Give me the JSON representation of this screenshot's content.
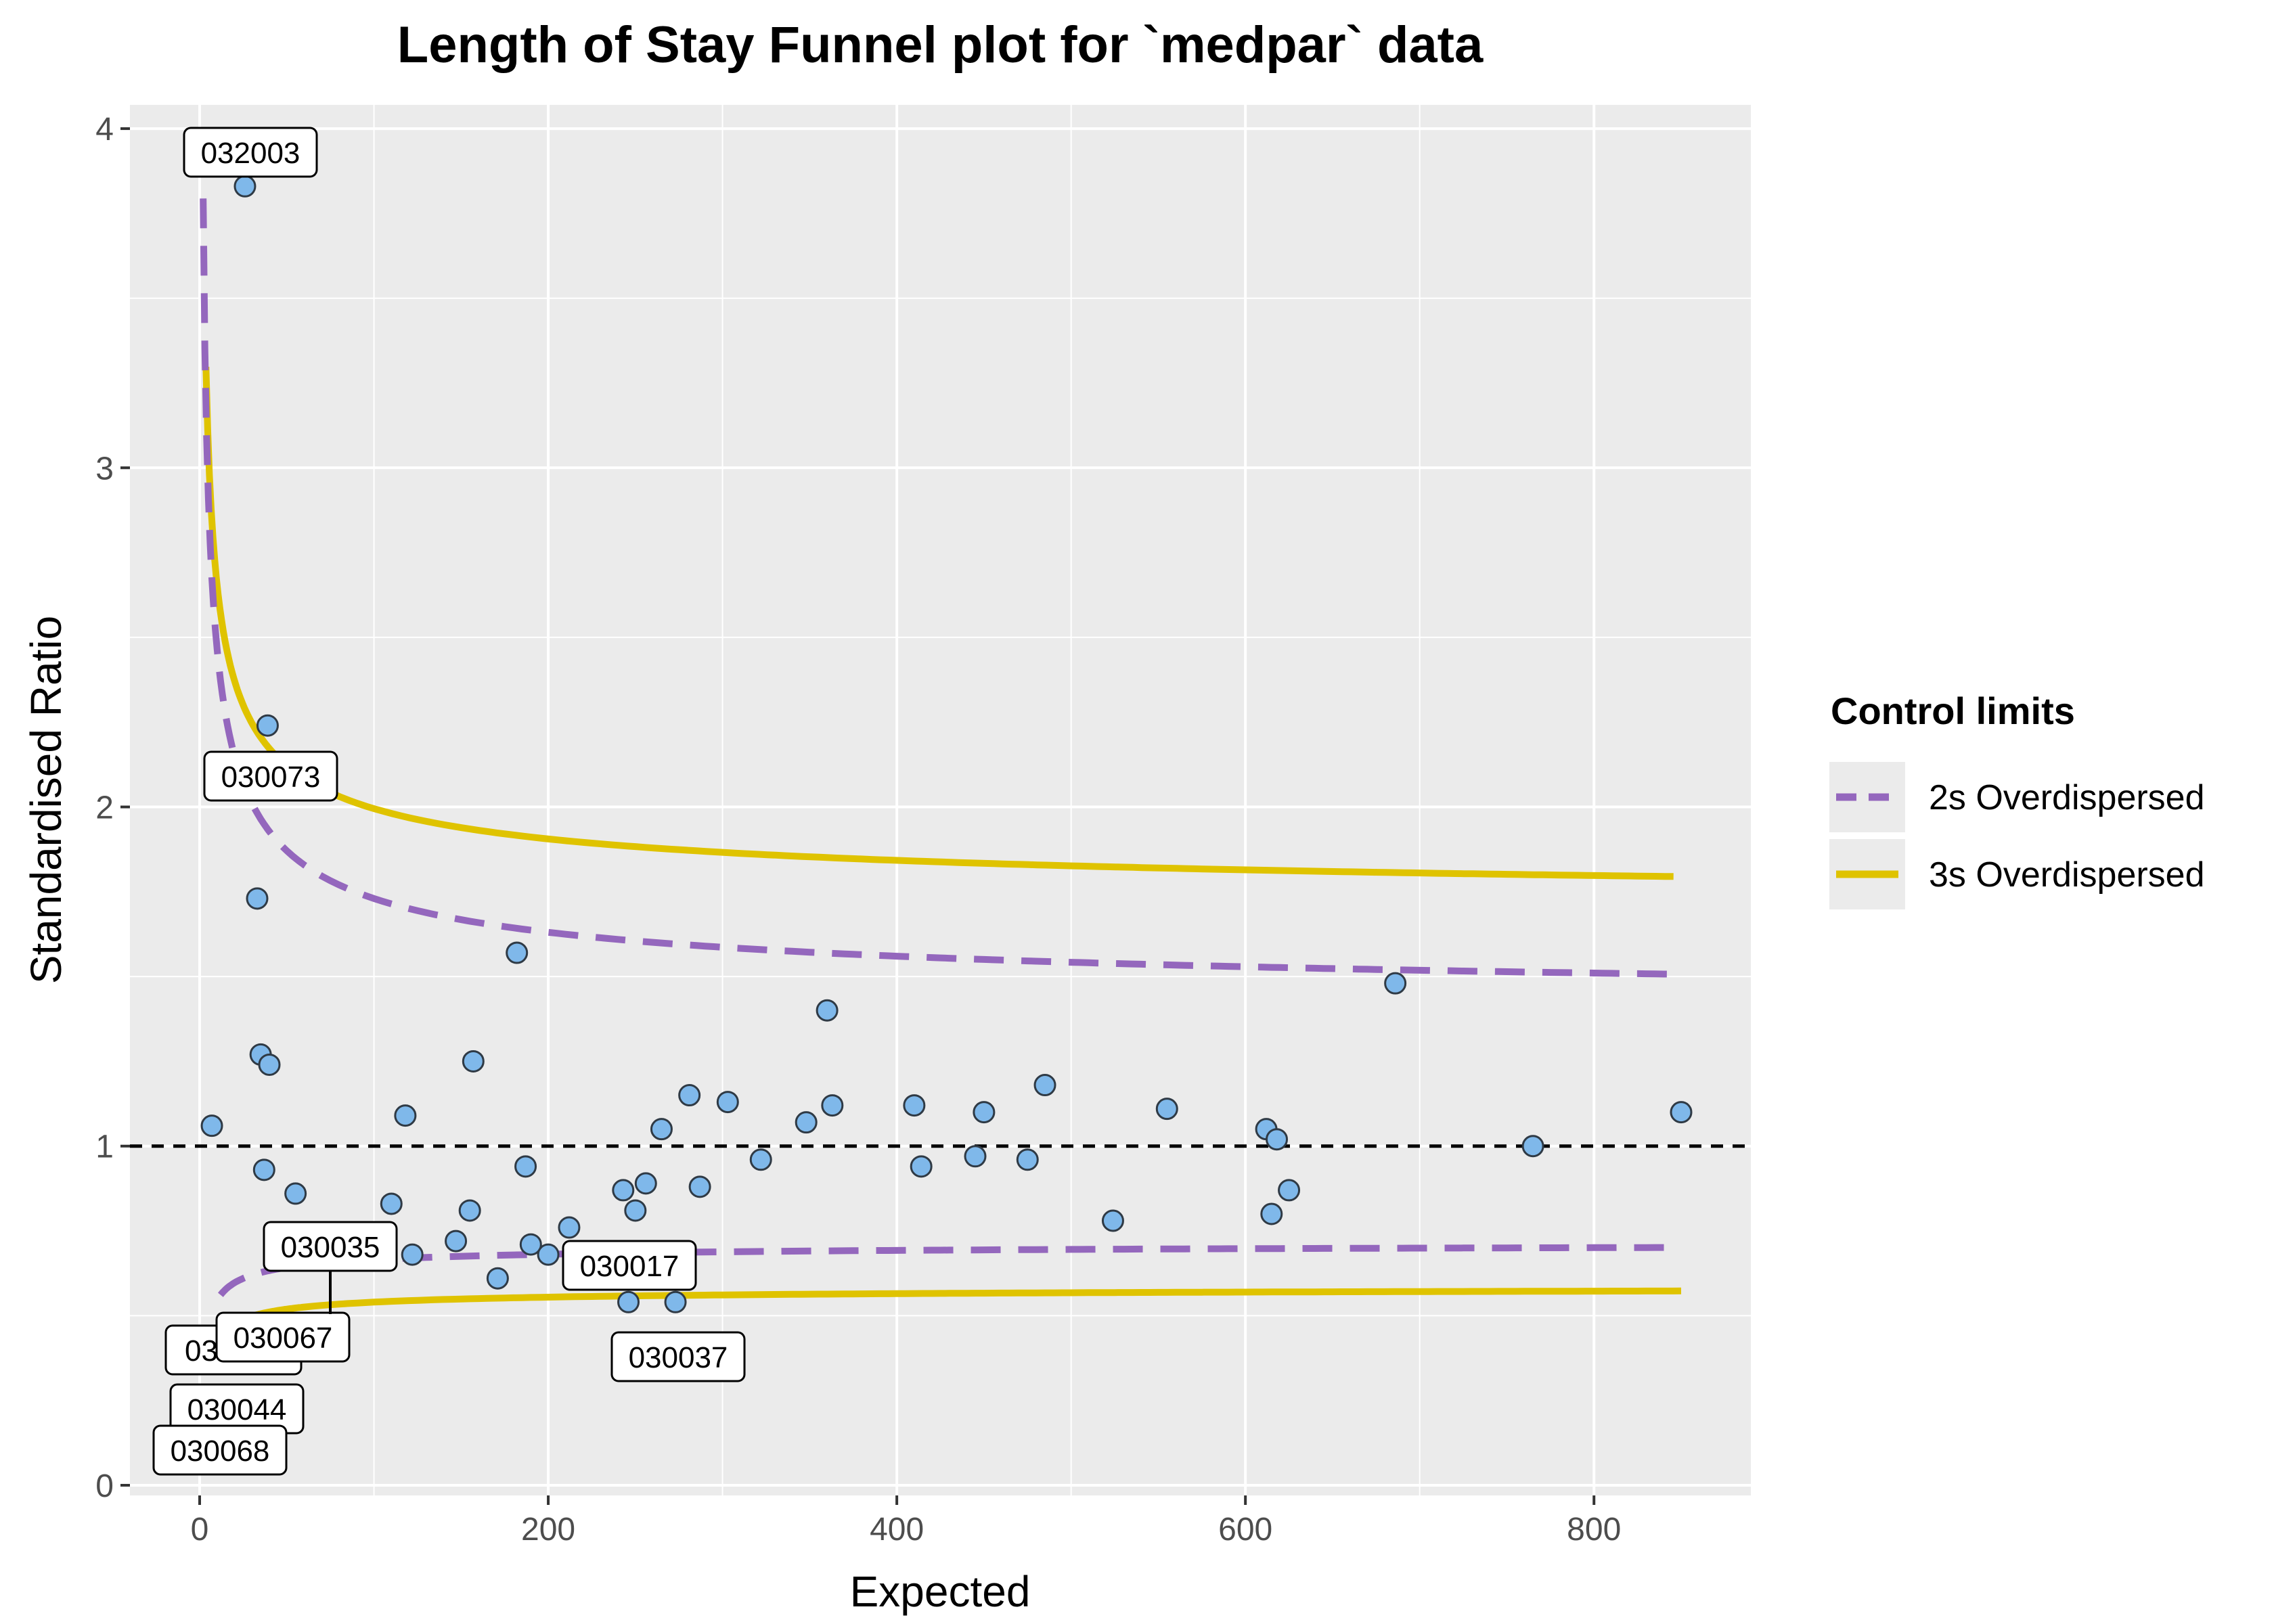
{
  "chart_data": {
    "type": "scatter",
    "title": "Length of Stay Funnel plot for `medpar` data",
    "xlabel": "Expected",
    "ylabel": "Standardised Ratio",
    "xlim": [
      -40,
      890
    ],
    "ylim": [
      -0.03,
      4.07
    ],
    "xticks": [
      0,
      200,
      400,
      600,
      800
    ],
    "yticks": [
      0,
      1,
      2,
      3,
      4
    ],
    "xtick_labels": [
      "0",
      "200",
      "400",
      "600",
      "800"
    ],
    "ytick_labels": [
      "0",
      "1",
      "2",
      "3",
      "4"
    ],
    "grid": true,
    "target_line": 1,
    "points": [
      [
        7,
        1.06
      ],
      [
        26,
        3.83
      ],
      [
        33,
        1.73
      ],
      [
        35,
        1.27
      ],
      [
        37,
        0.93
      ],
      [
        39,
        2.24
      ],
      [
        40,
        1.24
      ],
      [
        55,
        0.86
      ],
      [
        110,
        0.83
      ],
      [
        118,
        1.09
      ],
      [
        122,
        0.68
      ],
      [
        147,
        0.72
      ],
      [
        155,
        0.81
      ],
      [
        157,
        1.25
      ],
      [
        171,
        0.61
      ],
      [
        182,
        1.57
      ],
      [
        187,
        0.94
      ],
      [
        190,
        0.71
      ],
      [
        200,
        0.68
      ],
      [
        212,
        0.76
      ],
      [
        243,
        0.87
      ],
      [
        246,
        0.54
      ],
      [
        250,
        0.81
      ],
      [
        256,
        0.89
      ],
      [
        265,
        1.05
      ],
      [
        273,
        0.54
      ],
      [
        281,
        1.15
      ],
      [
        287,
        0.88
      ],
      [
        303,
        1.13
      ],
      [
        322,
        0.96
      ],
      [
        348,
        1.07
      ],
      [
        360,
        1.4
      ],
      [
        363,
        1.12
      ],
      [
        410,
        1.12
      ],
      [
        414,
        0.94
      ],
      [
        445,
        0.97
      ],
      [
        450,
        1.1
      ],
      [
        475,
        0.96
      ],
      [
        485,
        1.18
      ],
      [
        524,
        0.78
      ],
      [
        555,
        1.11
      ],
      [
        612,
        1.05
      ],
      [
        615,
        0.8
      ],
      [
        618,
        1.02
      ],
      [
        625,
        0.87
      ],
      [
        686,
        1.48
      ],
      [
        765,
        1.0
      ],
      [
        850,
        1.1
      ]
    ],
    "labels": [
      {
        "text": "032003",
        "x": 26,
        "y": 3.83
      },
      {
        "text": "030073",
        "x": 39,
        "y": 2.24
      },
      {
        "text": "030035",
        "x": 73,
        "y": 0.58
      },
      {
        "text": "030017",
        "x": 246,
        "y": 0.54
      },
      {
        "text": "030037",
        "x": 273,
        "y": 0.54
      },
      {
        "text": "030067",
        "x": 35,
        "y": 0.5
      },
      {
        "text": "030044",
        "x": 30,
        "y": 0.45
      },
      {
        "text": "030068",
        "x": 25,
        "y": 0.4
      },
      {
        "text": "03",
        "x": 20,
        "y": 0.48
      }
    ],
    "series": [
      {
        "name": "2s Overdispersed",
        "color": "#9467bd",
        "dash": true,
        "upper_far": 1.39,
        "lower_far": 0.72
      },
      {
        "name": "3s Overdispersed",
        "color": "#dfc300",
        "dash": false,
        "upper_far": 1.69,
        "lower_far": 0.59
      }
    ],
    "legend": {
      "title": "Control limits",
      "position": "right"
    }
  }
}
